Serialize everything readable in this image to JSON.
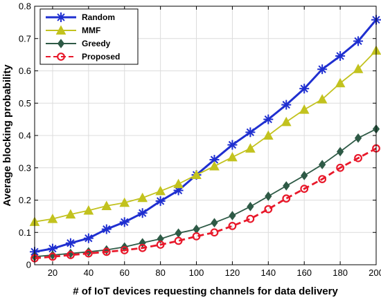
{
  "chart_data": {
    "type": "line",
    "title": "",
    "xlabel": "# of IoT devices requesting channels for data delivery",
    "ylabel": "Average blocking probability",
    "xlim": [
      10,
      200
    ],
    "ylim": [
      0,
      0.8
    ],
    "xticks": [
      20,
      40,
      60,
      80,
      100,
      120,
      140,
      160,
      180,
      200
    ],
    "yticks": [
      0,
      0.1,
      0.2,
      0.3,
      0.4,
      0.5,
      0.6,
      0.7,
      0.8
    ],
    "xtick_labels": [
      "20",
      "40",
      "60",
      "80",
      "100",
      "120",
      "140",
      "160",
      "180",
      "200"
    ],
    "ytick_labels": [
      "0",
      "0.1",
      "0.2",
      "0.3",
      "0.4",
      "0.5",
      "0.6",
      "0.7",
      "0.8"
    ],
    "grid": true,
    "legend_position": "top-left",
    "x": [
      10,
      20,
      30,
      40,
      50,
      60,
      70,
      80,
      90,
      100,
      110,
      120,
      130,
      140,
      150,
      160,
      170,
      180,
      190,
      200
    ],
    "series": [
      {
        "name": "Random",
        "color": "#1f2fd0",
        "marker": "asterisk",
        "line": "solid",
        "values": [
          0.04,
          0.05,
          0.067,
          0.082,
          0.11,
          0.132,
          0.16,
          0.197,
          0.23,
          0.278,
          0.325,
          0.371,
          0.41,
          0.45,
          0.495,
          0.545,
          0.605,
          0.646,
          0.692,
          0.758
        ]
      },
      {
        "name": "MMF",
        "color": "#c2c21e",
        "marker": "triangle",
        "line": "solid",
        "values": [
          0.133,
          0.142,
          0.156,
          0.168,
          0.182,
          0.192,
          0.207,
          0.228,
          0.25,
          0.278,
          0.305,
          0.333,
          0.36,
          0.4,
          0.442,
          0.48,
          0.512,
          0.562,
          0.606,
          0.663
        ]
      },
      {
        "name": "Greedy",
        "color": "#2e5a46",
        "marker": "diamond",
        "line": "solid",
        "values": [
          0.025,
          0.03,
          0.035,
          0.04,
          0.046,
          0.055,
          0.068,
          0.08,
          0.098,
          0.11,
          0.13,
          0.152,
          0.18,
          0.212,
          0.244,
          0.276,
          0.31,
          0.35,
          0.392,
          0.42
        ]
      },
      {
        "name": "Proposed",
        "color": "#e8182a",
        "marker": "circle",
        "line": "dashed",
        "values": [
          0.02,
          0.025,
          0.03,
          0.035,
          0.04,
          0.045,
          0.052,
          0.062,
          0.074,
          0.088,
          0.1,
          0.12,
          0.142,
          0.172,
          0.205,
          0.235,
          0.265,
          0.3,
          0.33,
          0.36
        ]
      }
    ]
  }
}
